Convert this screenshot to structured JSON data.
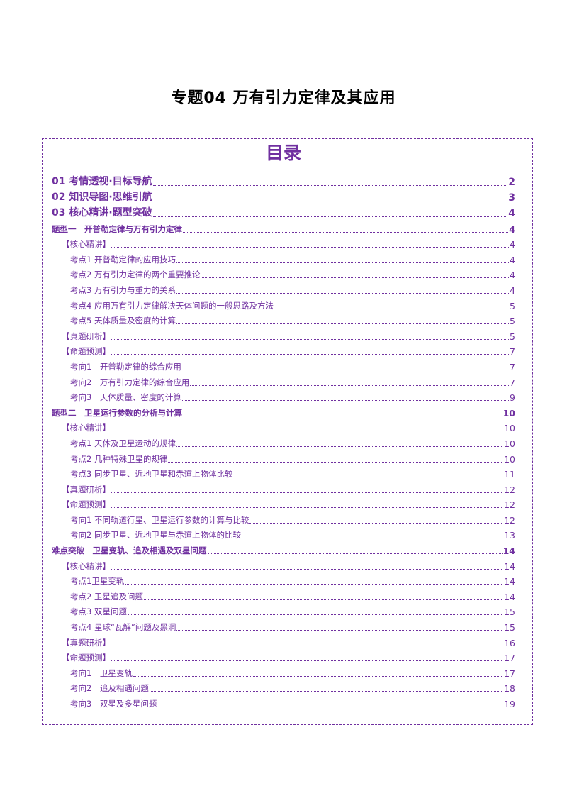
{
  "doc_title": "专题04  万有引力定律及其应用",
  "toc_heading": "目录",
  "toc": [
    {
      "level": 1,
      "label": "01 考情透视·目标导航",
      "page": "2"
    },
    {
      "level": 1,
      "label": "02 知识导图·思维引航",
      "page": "3"
    },
    {
      "level": 1,
      "label": "03 核心精讲·题型突破",
      "page": "4"
    },
    {
      "level": 2,
      "label": "题型一　开普勒定律与万有引力定律",
      "page": "4"
    },
    {
      "level": 3,
      "label": "【核心精讲】",
      "page": "4"
    },
    {
      "level": 4,
      "label": "考点1  开普勒定律的应用技巧",
      "page": "4"
    },
    {
      "level": 4,
      "label": "考点2  万有引力定律的两个重要推论",
      "page": "4"
    },
    {
      "level": 4,
      "label": "考点3  万有引力与重力的关系",
      "page": "4"
    },
    {
      "level": 4,
      "label": "考点4  应用万有引力定律解决天体问题的一般思路及方法",
      "page": "5"
    },
    {
      "level": 4,
      "label": "考点5  天体质量及密度的计算",
      "page": "5"
    },
    {
      "level": 3,
      "label": "【真题研析】",
      "page": "5"
    },
    {
      "level": 3,
      "label": "【命题预测】",
      "page": "7"
    },
    {
      "level": 4,
      "label": "考向1　开普勒定律的综合应用",
      "page": "7"
    },
    {
      "level": 4,
      "label": "考向2　万有引力定律的综合应用",
      "page": "7"
    },
    {
      "level": 4,
      "label": "考向3　天体质量、密度的计算",
      "page": "9"
    },
    {
      "level": 2,
      "label": "题型二　卫星运行参数的分析与计算",
      "page": "10"
    },
    {
      "level": 3,
      "label": "【核心精讲】",
      "page": "10"
    },
    {
      "level": 4,
      "label": "考点1  天体及卫星运动的规律",
      "page": "10"
    },
    {
      "level": 4,
      "label": "考点2  几种特殊卫星的规律",
      "page": "10"
    },
    {
      "level": 4,
      "label": "考点3  同步卫星、近地卫星和赤道上物体比较",
      "page": "11"
    },
    {
      "level": 3,
      "label": "【真题研析】",
      "page": "12"
    },
    {
      "level": 3,
      "label": "【命题预测】",
      "page": "12"
    },
    {
      "level": 4,
      "label": "考向1  不同轨道行星、卫星运行参数的计算与比较",
      "page": "12"
    },
    {
      "level": 4,
      "label": "考向2  同步卫星、近地卫星与赤道上物体的比较",
      "page": "13"
    },
    {
      "level": 2,
      "label": "难点突破　卫星变轨、追及相遇及双星问题",
      "page": "14"
    },
    {
      "level": 3,
      "label": "【核心精讲】",
      "page": "14"
    },
    {
      "level": 4,
      "label": "考点1卫星变轨",
      "page": "14"
    },
    {
      "level": 4,
      "label": "考点2  卫星追及问题",
      "page": "14"
    },
    {
      "level": 4,
      "label": "考点3  双星问题",
      "page": "15"
    },
    {
      "level": 4,
      "label": "考点4  星球“瓦解”问题及黑洞",
      "page": "15"
    },
    {
      "level": 3,
      "label": "【真题研析】",
      "page": "16"
    },
    {
      "level": 3,
      "label": "【命题预测】",
      "page": "17"
    },
    {
      "level": 4,
      "label": "考向1　卫星变轨",
      "page": "17"
    },
    {
      "level": 4,
      "label": "考向2　追及相遇问题",
      "page": "18"
    },
    {
      "level": 4,
      "label": "考向3　双星及多星问题",
      "page": "19"
    }
  ]
}
